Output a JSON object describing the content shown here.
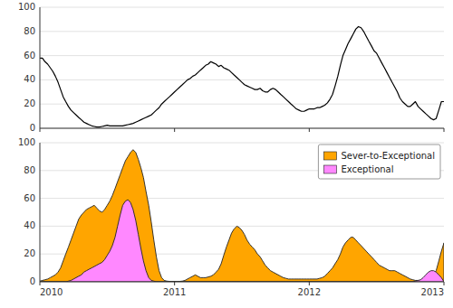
{
  "chart_data": [
    {
      "type": "line",
      "x": [
        2010.0,
        2010.019,
        2010.038,
        2010.058,
        2010.077,
        2010.096,
        2010.115,
        2010.135,
        2010.154,
        2010.173,
        2010.192,
        2010.212,
        2010.231,
        2010.25,
        2010.269,
        2010.288,
        2010.308,
        2010.327,
        2010.346,
        2010.365,
        2010.385,
        2010.404,
        2010.423,
        2010.442,
        2010.462,
        2010.481,
        2010.5,
        2010.519,
        2010.538,
        2010.558,
        2010.577,
        2010.596,
        2010.615,
        2010.635,
        2010.654,
        2010.673,
        2010.692,
        2010.712,
        2010.731,
        2010.75,
        2010.769,
        2010.788,
        2010.808,
        2010.827,
        2010.846,
        2010.865,
        2010.885,
        2010.904,
        2010.923,
        2010.942,
        2010.962,
        2010.981,
        2011.0,
        2011.019,
        2011.038,
        2011.058,
        2011.077,
        2011.096,
        2011.115,
        2011.135,
        2011.154,
        2011.173,
        2011.192,
        2011.212,
        2011.231,
        2011.25,
        2011.269,
        2011.288,
        2011.308,
        2011.327,
        2011.346,
        2011.365,
        2011.385,
        2011.404,
        2011.423,
        2011.442,
        2011.462,
        2011.481,
        2011.5,
        2011.519,
        2011.538,
        2011.558,
        2011.577,
        2011.596,
        2011.615,
        2011.635,
        2011.654,
        2011.673,
        2011.692,
        2011.712,
        2011.731,
        2011.75,
        2011.769,
        2011.788,
        2011.808,
        2011.827,
        2011.846,
        2011.865,
        2011.885,
        2011.904,
        2011.923,
        2011.942,
        2011.962,
        2011.981,
        2012.0,
        2012.019,
        2012.038,
        2012.058,
        2012.077,
        2012.096,
        2012.115,
        2012.135,
        2012.154,
        2012.173,
        2012.192,
        2012.212,
        2012.231,
        2012.25,
        2012.269,
        2012.288,
        2012.308,
        2012.327,
        2012.346,
        2012.365,
        2012.385,
        2012.404,
        2012.423,
        2012.442,
        2012.462,
        2012.481,
        2012.5,
        2012.519,
        2012.538,
        2012.558,
        2012.577,
        2012.596,
        2012.615,
        2012.635,
        2012.654,
        2012.673,
        2012.692,
        2012.712,
        2012.731,
        2012.75,
        2012.769,
        2012.788,
        2012.808,
        2012.827,
        2012.846,
        2012.865,
        2012.885,
        2012.904,
        2012.923,
        2012.942,
        2012.962,
        2012.981,
        2013.0
      ],
      "series": [
        {
          "color": "#000000",
          "values": [
            58,
            58,
            55,
            53,
            50,
            47,
            43,
            38,
            32,
            26,
            22,
            18,
            15,
            13,
            11,
            9,
            7,
            5,
            4,
            3,
            2,
            1.5,
            1,
            1,
            1.5,
            2,
            2.5,
            2,
            2,
            2,
            2,
            2,
            2,
            2.5,
            3,
            3.5,
            4,
            5,
            6,
            7,
            8,
            9,
            10,
            11,
            13,
            15,
            17,
            20,
            22,
            24,
            26,
            28,
            30,
            32,
            34,
            36,
            38,
            40,
            41,
            43,
            44,
            46,
            48,
            50,
            52,
            53,
            55,
            54,
            53,
            51,
            52,
            50,
            49,
            48,
            46,
            44,
            42,
            40,
            38,
            36,
            35,
            34,
            33,
            32,
            32,
            33,
            31,
            30,
            30,
            32,
            33,
            32,
            30,
            28,
            26,
            24,
            22,
            20,
            18,
            16,
            15,
            14,
            14,
            15,
            16,
            16,
            16,
            17,
            17,
            18,
            19,
            21,
            24,
            28,
            35,
            43,
            52,
            60,
            65,
            70,
            74,
            78,
            82,
            84,
            83,
            80,
            76,
            72,
            68,
            64,
            62,
            58,
            54,
            50,
            46,
            42,
            38,
            34,
            30,
            25,
            22,
            20,
            18,
            18,
            20,
            22,
            18,
            16,
            14,
            12,
            10,
            8,
            7,
            8,
            15,
            22,
            22
          ]
        }
      ],
      "xlim": [
        2010.0,
        2013.0
      ],
      "ylim": [
        0.0,
        100.0
      ],
      "xticks": [
        2010,
        2011,
        2012,
        2013
      ],
      "yticks": [
        0,
        20,
        40,
        60,
        80,
        100
      ],
      "grid": true,
      "tick_labels": "y"
    },
    {
      "type": "area",
      "series": [
        {
          "name": "Sever-to-Exceptional",
          "color": "#FFA500",
          "x": [
            2010.0,
            2010.019,
            2010.038,
            2010.058,
            2010.077,
            2010.096,
            2010.115,
            2010.135,
            2010.154,
            2010.173,
            2010.192,
            2010.212,
            2010.231,
            2010.25,
            2010.269,
            2010.288,
            2010.308,
            2010.327,
            2010.346,
            2010.365,
            2010.385,
            2010.404,
            2010.423,
            2010.442,
            2010.462,
            2010.481,
            2010.5,
            2010.519,
            2010.538,
            2010.558,
            2010.577,
            2010.596,
            2010.615,
            2010.635,
            2010.654,
            2010.673,
            2010.692,
            2010.712,
            2010.731,
            2010.75,
            2010.769,
            2010.788,
            2010.808,
            2010.827,
            2010.846,
            2010.865,
            2010.885,
            2010.904,
            2010.923,
            2010.942,
            2010.962,
            2010.981,
            2011.0,
            2011.019,
            2011.038,
            2011.058,
            2011.077,
            2011.096,
            2011.115,
            2011.135,
            2011.154,
            2011.173,
            2011.192,
            2011.212,
            2011.231,
            2011.25,
            2011.269,
            2011.288,
            2011.308,
            2011.327,
            2011.346,
            2011.365,
            2011.385,
            2011.404,
            2011.423,
            2011.442,
            2011.462,
            2011.481,
            2011.5,
            2011.519,
            2011.538,
            2011.558,
            2011.577,
            2011.596,
            2011.615,
            2011.635,
            2011.654,
            2011.673,
            2011.692,
            2011.712,
            2011.731,
            2011.75,
            2011.769,
            2011.788,
            2011.808,
            2011.827,
            2011.846,
            2011.865,
            2011.885,
            2011.904,
            2011.923,
            2011.942,
            2011.962,
            2011.981,
            2012.0,
            2012.019,
            2012.038,
            2012.058,
            2012.077,
            2012.096,
            2012.115,
            2012.135,
            2012.154,
            2012.173,
            2012.192,
            2012.212,
            2012.231,
            2012.25,
            2012.269,
            2012.288,
            2012.308,
            2012.327,
            2012.346,
            2012.365,
            2012.385,
            2012.404,
            2012.423,
            2012.442,
            2012.462,
            2012.481,
            2012.5,
            2012.519,
            2012.538,
            2012.558,
            2012.577,
            2012.596,
            2012.615,
            2012.635,
            2012.654,
            2012.673,
            2012.692,
            2012.712,
            2012.731,
            2012.75,
            2012.769,
            2012.788,
            2012.808,
            2012.827,
            2012.846,
            2012.865,
            2012.885,
            2012.904,
            2012.923,
            2012.942,
            2012.962,
            2012.981,
            2013.0,
            2013.0
          ],
          "values": [
            0.5,
            1,
            1.5,
            2,
            3,
            4,
            5,
            7,
            10,
            15,
            20,
            25,
            30,
            35,
            40,
            45,
            48,
            50,
            52,
            53,
            54,
            55,
            53,
            51,
            50,
            52,
            55,
            58,
            62,
            67,
            72,
            77,
            82,
            87,
            90,
            93,
            95,
            93,
            88,
            82,
            75,
            65,
            55,
            43,
            30,
            18,
            8,
            3,
            1,
            0.5,
            0.3,
            0.2,
            0.2,
            0.2,
            0.3,
            0.5,
            1,
            2,
            3,
            4,
            5,
            4,
            3,
            3,
            3,
            3.5,
            4,
            5,
            7,
            9,
            13,
            19,
            25,
            30,
            35,
            38,
            40,
            39,
            37,
            34,
            30,
            27,
            25,
            23,
            20,
            18,
            15,
            12,
            10,
            8,
            7,
            6,
            5,
            4,
            3,
            2.5,
            2,
            2,
            2,
            2,
            2,
            2,
            2,
            2,
            2,
            2,
            2,
            2,
            2.5,
            3,
            4,
            6,
            8,
            10,
            13,
            16,
            20,
            25,
            28,
            30,
            32,
            32,
            30,
            28,
            26,
            24,
            22,
            20,
            18,
            16,
            14,
            12,
            11,
            10,
            9,
            8,
            8,
            8,
            7,
            6,
            5,
            4,
            3,
            2,
            1.5,
            1,
            1,
            1,
            1.5,
            2,
            3,
            4,
            5,
            8,
            15,
            22,
            28,
            28
          ]
        },
        {
          "name": "Exceptional",
          "color": "#FF88FF",
          "x": [
            2010.0,
            2010.019,
            2010.038,
            2010.058,
            2010.077,
            2010.096,
            2010.115,
            2010.135,
            2010.154,
            2010.173,
            2010.192,
            2010.212,
            2010.231,
            2010.25,
            2010.269,
            2010.288,
            2010.308,
            2010.327,
            2010.346,
            2010.365,
            2010.385,
            2010.404,
            2010.423,
            2010.442,
            2010.462,
            2010.481,
            2010.5,
            2010.519,
            2010.538,
            2010.558,
            2010.577,
            2010.596,
            2010.615,
            2010.635,
            2010.654,
            2010.673,
            2010.692,
            2010.712,
            2010.731,
            2010.75,
            2010.769,
            2010.788,
            2010.808,
            2010.827,
            2010.846,
            2010.865,
            2010.885,
            2010.904,
            2010.923,
            2010.942,
            2010.962,
            2010.981,
            2011.0,
            2011.019,
            2011.038,
            2011.058,
            2011.077,
            2011.096,
            2011.115,
            2011.135,
            2011.154,
            2011.173,
            2011.192,
            2011.212,
            2011.231,
            2011.25,
            2011.269,
            2011.288,
            2011.308,
            2011.327,
            2011.346,
            2011.365,
            2011.385,
            2011.404,
            2011.423,
            2011.442,
            2011.462,
            2011.481,
            2011.5,
            2011.519,
            2011.538,
            2011.558,
            2011.577,
            2011.596,
            2011.615,
            2011.635,
            2011.654,
            2011.673,
            2011.692,
            2011.712,
            2011.731,
            2011.75,
            2011.769,
            2011.788,
            2011.808,
            2011.827,
            2011.846,
            2011.865,
            2011.885,
            2011.904,
            2011.923,
            2011.942,
            2011.962,
            2011.981,
            2012.0,
            2012.019,
            2012.038,
            2012.058,
            2012.077,
            2012.096,
            2012.115,
            2012.135,
            2012.154,
            2012.173,
            2012.192,
            2012.212,
            2012.231,
            2012.25,
            2012.269,
            2012.288,
            2012.308,
            2012.327,
            2012.346,
            2012.365,
            2012.385,
            2012.404,
            2012.423,
            2012.442,
            2012.462,
            2012.481,
            2012.5,
            2012.519,
            2012.538,
            2012.558,
            2012.577,
            2012.596,
            2012.615,
            2012.635,
            2012.654,
            2012.673,
            2012.692,
            2012.712,
            2012.731,
            2012.75,
            2012.769,
            2012.788,
            2012.808,
            2012.827,
            2012.846,
            2012.865,
            2012.885,
            2012.904,
            2012.923,
            2012.942,
            2012.962,
            2012.981,
            2013.0
          ],
          "values": [
            0,
            0,
            0,
            0,
            0,
            0,
            0,
            0,
            0,
            0,
            0,
            0.5,
            1,
            2,
            3,
            4,
            5,
            7,
            8,
            9,
            10,
            11,
            12,
            13,
            14,
            16,
            19,
            22,
            26,
            32,
            40,
            48,
            55,
            58,
            59,
            57,
            52,
            44,
            34,
            24,
            15,
            8,
            3,
            1,
            0.5,
            0,
            0,
            0,
            0,
            0,
            0,
            0,
            0,
            0,
            0,
            0,
            0,
            0,
            0,
            0,
            0,
            0,
            0,
            0,
            0,
            0,
            0,
            0,
            0,
            0,
            0,
            0,
            0,
            0,
            0,
            0,
            0,
            0,
            0,
            0,
            0,
            0,
            0,
            0,
            0,
            0,
            0,
            0,
            0,
            0,
            0,
            0,
            0,
            0,
            0,
            0,
            0,
            0,
            0,
            0,
            0,
            0,
            0,
            0,
            0,
            0,
            0,
            0,
            0,
            0,
            0,
            0,
            0,
            0,
            0,
            0,
            0,
            0,
            0,
            0,
            0,
            0,
            0,
            0,
            0,
            0,
            0,
            0,
            0,
            0,
            0,
            0,
            0,
            0,
            0,
            0,
            0,
            0,
            0,
            0,
            0,
            0,
            0,
            0,
            0,
            0.5,
            1,
            1.5,
            3,
            5,
            7,
            8,
            8,
            7,
            5,
            3,
            0
          ]
        }
      ],
      "xlim": [
        2010.0,
        2013.0
      ],
      "ylim": [
        0.0,
        100.0
      ],
      "xticks": [
        2010,
        2011,
        2012,
        2013
      ],
      "yticks": [
        0,
        20,
        40,
        60,
        80,
        100
      ],
      "grid": true,
      "legend": "upper right"
    }
  ]
}
